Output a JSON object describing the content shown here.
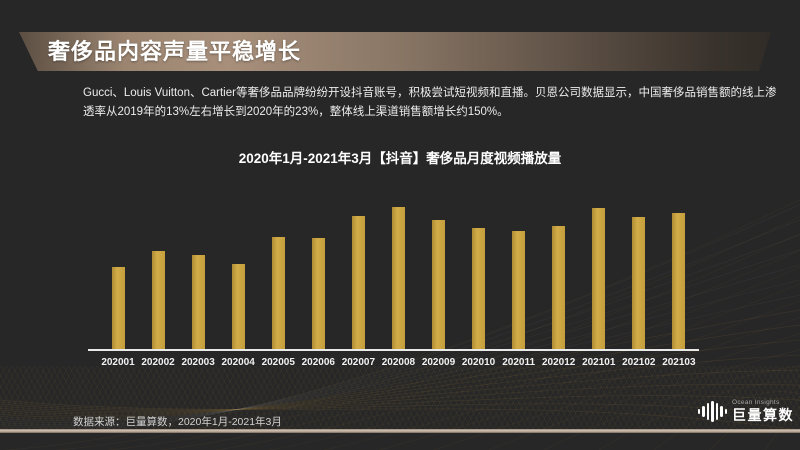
{
  "header": {
    "title": "奢侈品内容声量平稳增长"
  },
  "intro": {
    "lines": [
      "Gucci、Louis Vuitton、Cartier等奢侈品品牌纷纷开设抖音账号，积极尝试短视频和直播。贝恩公司数据显示，中国奢侈品销售额的线上渗",
      "透率从2019年的13%左右增长到2020年的23%，整体线上渠道销售额增长约150%。"
    ]
  },
  "chart_data": {
    "type": "bar",
    "title": "2020年1月-2021年3月【抖音】奢侈品月度视频播放量",
    "categories": [
      "202001",
      "202002",
      "202003",
      "202004",
      "202005",
      "202006",
      "202007",
      "202008",
      "202009",
      "202010",
      "202011",
      "202012",
      "202101",
      "202102",
      "202103"
    ],
    "values": [
      58,
      69,
      66,
      60,
      79,
      78,
      94,
      100,
      91,
      85,
      83,
      87,
      99,
      93,
      96
    ],
    "value_note": "relative index estimated from bar heights; no y-axis shown; peak month 202008 = 100",
    "xlabel": "",
    "ylabel": "",
    "ylim": [
      0,
      100
    ],
    "grid": false,
    "legend": false,
    "bar_color": "#C9A23E"
  },
  "footer": {
    "source": "数据来源：巨量算数，2020年1月-2021年3月"
  },
  "logo": {
    "brand_en": "Ocean Insights",
    "brand_cn": "巨量算数"
  },
  "colors": {
    "background": "#272727",
    "bar": "#C9A23E",
    "banner_highlight": "#A78F7B",
    "bottom_strip": "#D4C4B4",
    "axis_line": "#E9E9E9"
  }
}
